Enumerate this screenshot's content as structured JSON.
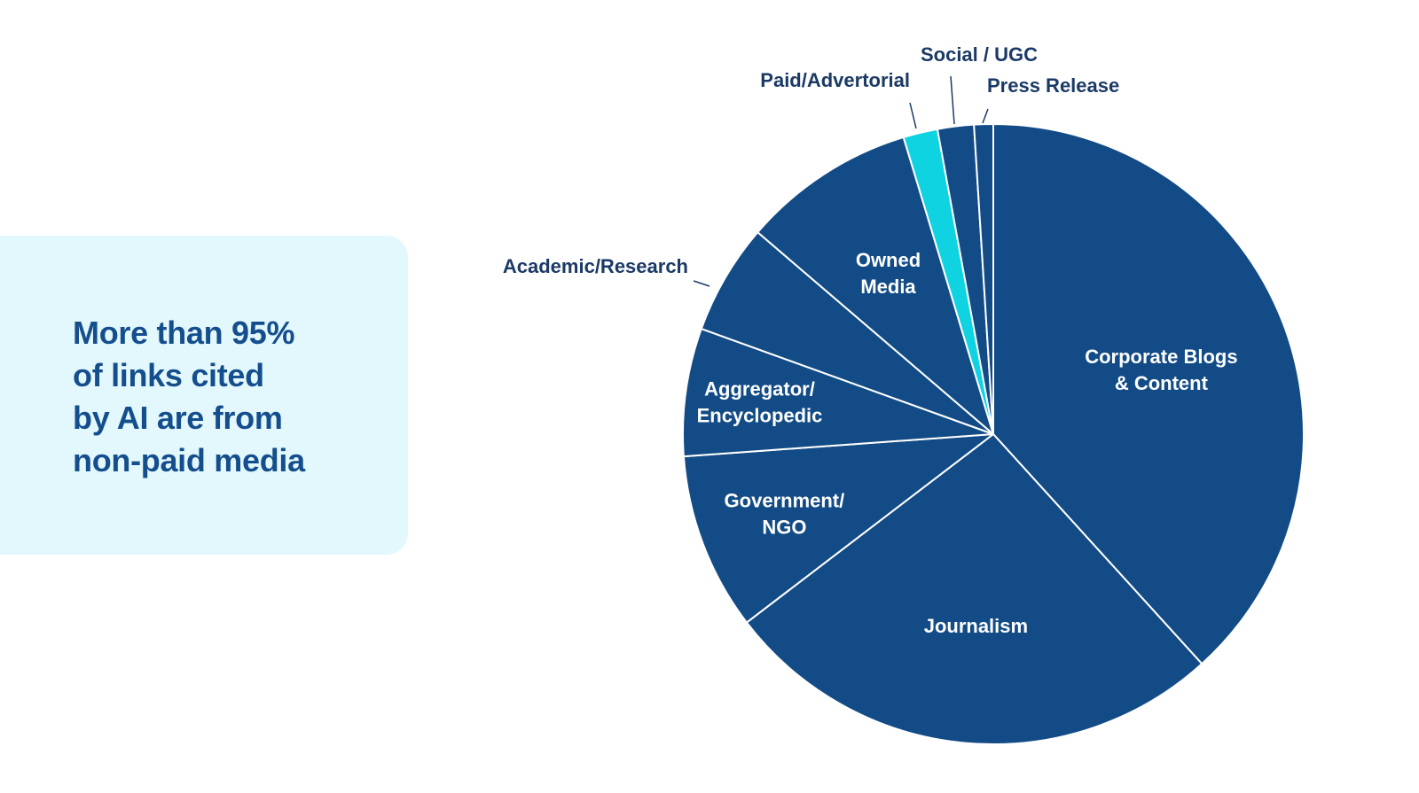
{
  "callout": {
    "lines": [
      "More than 95%",
      "of links cited",
      "by AI are from",
      "non-paid media"
    ]
  },
  "chart_data": {
    "type": "pie",
    "start": "12 o'clock, clockwise",
    "slices": [
      {
        "label": [
          "Corporate Blogs",
          "& Content"
        ],
        "value": 38.5,
        "color": "#124b86"
      },
      {
        "label": [
          "Journalism"
        ],
        "value": 26.5,
        "color": "#124b86"
      },
      {
        "label": [
          "Government/",
          "NGO"
        ],
        "value": 9.3,
        "color": "#124b86"
      },
      {
        "label": [
          "Aggregator/",
          "Encyclopedic"
        ],
        "value": 6.7,
        "color": "#124b86"
      },
      {
        "label": [
          "Academic/Research"
        ],
        "value": 5.8,
        "color": "#124b86"
      },
      {
        "label": [
          "Owned",
          "Media"
        ],
        "value": 9.1,
        "color": "#124b86"
      },
      {
        "label": [
          "Paid/Advertorial"
        ],
        "value": 1.8,
        "color": "#0fd3e0"
      },
      {
        "label": [
          "Social / UGC"
        ],
        "value": 1.9,
        "color": "#124b86"
      },
      {
        "label": [
          "Press Release"
        ],
        "value": 1.0,
        "color": "#124b86"
      }
    ]
  }
}
